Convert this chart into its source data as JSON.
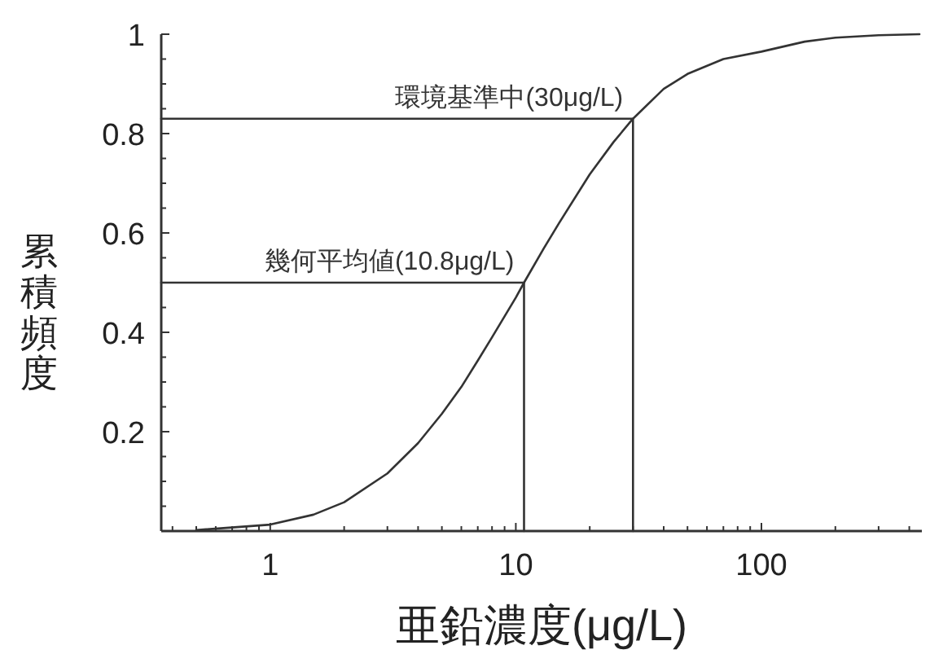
{
  "chart_data": {
    "type": "line",
    "xlabel": "亜鉛濃度(μg/L)",
    "ylabel": "累積頻度",
    "log": "x",
    "xlim": [
      0.36,
      450
    ],
    "ylim": [
      0,
      1
    ],
    "xticks": [
      {
        "value": 0.4,
        "label": null
      },
      {
        "value": 0.5,
        "label": null
      },
      {
        "value": 0.6,
        "label": null
      },
      {
        "value": 0.7,
        "label": null
      },
      {
        "value": 0.8,
        "label": null
      },
      {
        "value": 0.9,
        "label": null
      },
      1,
      {
        "value": 2,
        "label": null
      },
      {
        "value": 3,
        "label": null
      },
      {
        "value": 4,
        "label": null
      },
      {
        "value": 5,
        "label": null
      },
      {
        "value": 6,
        "label": null
      },
      {
        "value": 7,
        "label": null
      },
      {
        "value": 8,
        "label": null
      },
      {
        "value": 9,
        "label": null
      },
      10,
      {
        "value": 20,
        "label": null
      },
      {
        "value": 30,
        "label": null
      },
      {
        "value": 40,
        "label": null
      },
      {
        "value": 50,
        "label": null
      },
      {
        "value": 60,
        "label": null
      },
      {
        "value": 70,
        "label": null
      },
      {
        "value": 80,
        "label": null
      },
      {
        "value": 90,
        "label": null
      },
      100,
      {
        "value": 200,
        "label": null
      },
      {
        "value": 300,
        "label": null
      },
      {
        "value": 400,
        "label": null
      }
    ],
    "yticks": [
      {
        "value": 0.05,
        "label": null
      },
      {
        "value": 0.1,
        "label": null
      },
      {
        "value": 0.15,
        "label": null
      },
      0.2,
      {
        "value": 0.25,
        "label": null
      },
      {
        "value": 0.3,
        "label": null
      },
      {
        "value": 0.35,
        "label": null
      },
      0.4,
      {
        "value": 0.45,
        "label": null
      },
      {
        "value": 0.5,
        "label": null
      },
      {
        "value": 0.55,
        "label": null
      },
      0.6,
      {
        "value": 0.65,
        "label": null
      },
      {
        "value": 0.7,
        "label": null
      },
      {
        "value": 0.75,
        "label": null
      },
      0.8,
      {
        "value": 0.85,
        "label": null
      },
      {
        "value": 0.9,
        "label": null
      },
      {
        "value": 0.95,
        "label": null
      },
      1
    ],
    "series": [
      {
        "color": "#333333",
        "x": [
          0.5,
          1,
          1.5,
          2,
          3,
          4,
          5,
          6,
          7,
          8,
          10,
          10.8,
          13,
          15,
          20,
          25,
          30,
          40,
          50,
          70,
          100,
          150,
          200,
          300,
          440
        ],
        "values": [
          0.002,
          0.013,
          0.033,
          0.058,
          0.116,
          0.177,
          0.236,
          0.29,
          0.343,
          0.39,
          0.47,
          0.5,
          0.569,
          0.62,
          0.718,
          0.783,
          0.83,
          0.89,
          0.92,
          0.95,
          0.965,
          0.985,
          0.993,
          0.998,
          1
        ]
      },
      {
        "color": "#333333",
        "x": [
          0.36,
          10.8,
          10.8
        ],
        "values": [
          0.5,
          0.5,
          0
        ]
      },
      {
        "color": "#333333",
        "x": [
          0.36,
          30,
          30
        ],
        "values": [
          0.83,
          0.83,
          0
        ]
      }
    ],
    "annotations": [
      {
        "text": "環境基準中(30μg/L)",
        "x": 30,
        "y": 0.83
      },
      {
        "text": "幾何平均値(10.8μg/L)",
        "x": 10.8,
        "y": 0.5
      }
    ]
  }
}
